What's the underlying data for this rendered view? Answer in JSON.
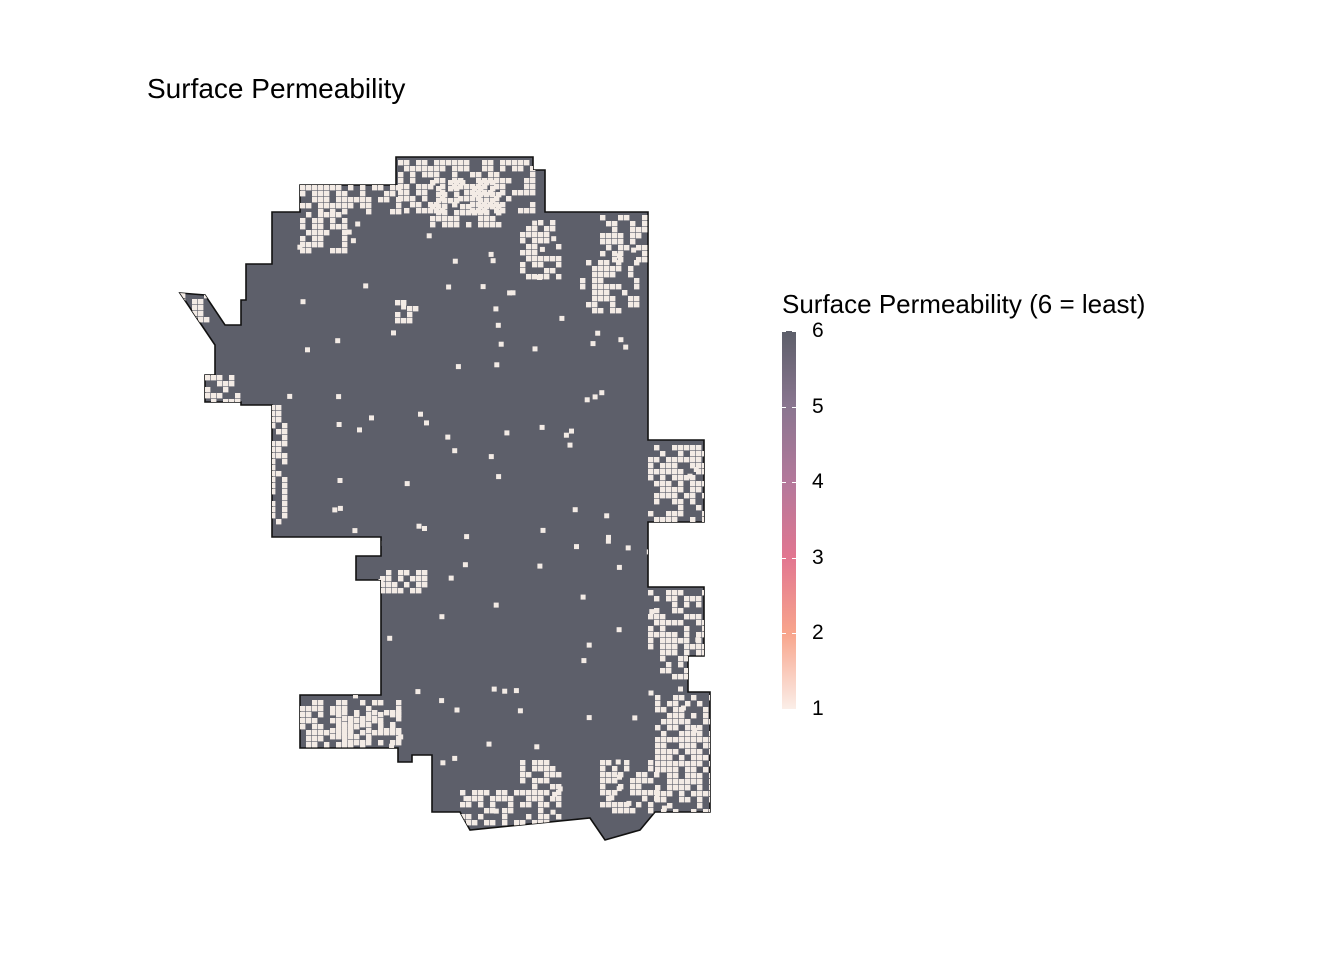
{
  "title": "Surface Permeability",
  "legend": {
    "title": "Surface Permeability (6 = least)",
    "breaks": [
      {
        "label": "6",
        "value": 6
      },
      {
        "label": "5",
        "value": 5
      },
      {
        "label": "4",
        "value": 4
      },
      {
        "label": "3",
        "value": 3
      },
      {
        "label": "2",
        "value": 2
      },
      {
        "label": "1",
        "value": 1
      }
    ],
    "limits": [
      1,
      6
    ],
    "palette": [
      "#fbeee8",
      "#f8a58c",
      "#e27690",
      "#b4789b",
      "#8a7690",
      "#5d5f6a"
    ]
  },
  "colors": {
    "impermeable": "#5d5f6a",
    "permeable": "#f3ebe5",
    "cell_outline": "#3a3b42",
    "boundary": "#111111"
  }
}
